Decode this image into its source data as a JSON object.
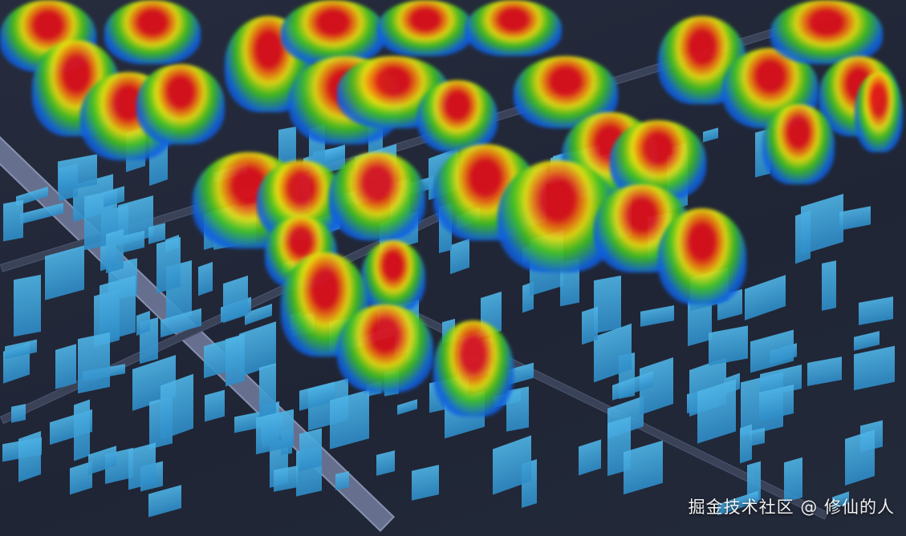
{
  "map": {
    "type": "3d-heatmap",
    "base_color": "#222838",
    "building_color": "#3aa3dc",
    "heat_colors": [
      "#1060e0",
      "#40c020",
      "#e8e010",
      "#f07a10",
      "#e0101a"
    ]
  },
  "watermark": "掘金技术社区 @ 修仙的人"
}
